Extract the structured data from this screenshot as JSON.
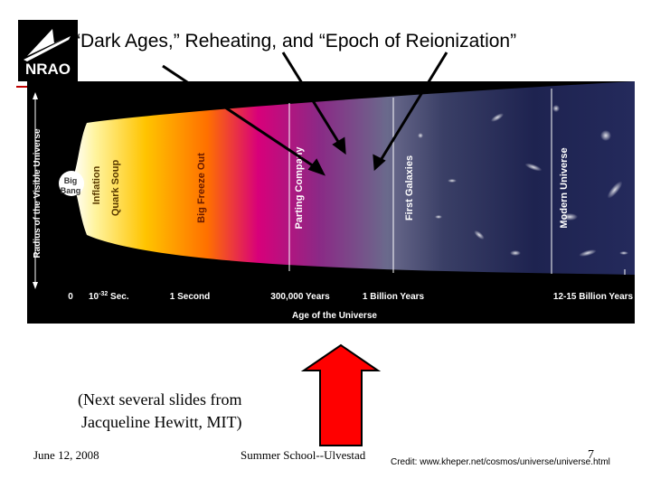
{
  "slide": {
    "title": "“Dark Ages,” Reheating, and “Epoch of Reionization”",
    "logo_text": "NRAO",
    "note_line1": "(Next several slides from",
    "note_line2": "Jacqueline Hewitt, MIT)",
    "footer_date": "June 12, 2008",
    "footer_school": "Summer School--Ulvestad",
    "page_number": "7",
    "credit": "Credit: www.kheper.net/cosmos/universe/universe.html"
  },
  "diagram": {
    "y_axis_label": "Radius of the Visible Universe",
    "x_axis_label": "Age of the Universe",
    "epochs": {
      "big_bang_line1": "Big",
      "big_bang_line2": "Bang",
      "inflation": "Inflation",
      "quark_soup": "Quark Soup",
      "big_freeze_out": "Big Freeze Out",
      "parting_company": "Parting Company",
      "first_galaxies": "First Galaxies",
      "modern_universe": "Modern Universe"
    },
    "ticks": {
      "t0": "0",
      "t1_base": "10",
      "t1_exp": "-32",
      "t1_unit": " Sec.",
      "t2": "1 Second",
      "t3": "300,000 Years",
      "t4": "1 Billion Years",
      "t5": "12-15 Billion Years"
    }
  },
  "colors": {
    "arrow_red": "#ff0000",
    "diagram_bg": "#000000",
    "header_rule": "#c00000"
  }
}
